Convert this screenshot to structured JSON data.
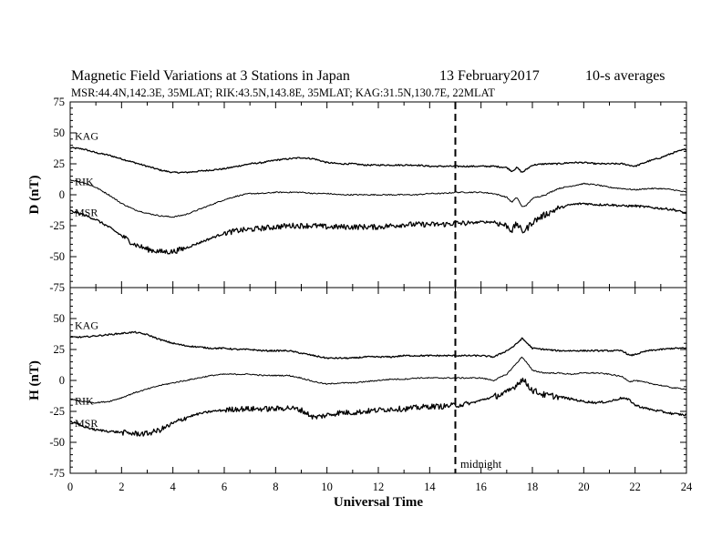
{
  "header": {
    "title": "Magnetic Field Variations at 3 Stations in Japan",
    "date": "13 February2017",
    "averaging": "10-s averages",
    "stations_line": "MSR:44.4N,142.3E, 35MLAT;  RIK:43.5N,143.8E, 35MLAT;  KAG:31.5N,130.7E, 22MLAT"
  },
  "chart_data": {
    "type": "line",
    "x_label": "Universal Time",
    "x_range": [
      0,
      24
    ],
    "x_ticks": [
      "0",
      "2",
      "4",
      "6",
      "8",
      "10",
      "12",
      "14",
      "16",
      "18",
      "20",
      "22",
      "24"
    ],
    "marker": {
      "x": 15,
      "label": "midnight"
    },
    "panels": [
      {
        "id": "D",
        "ylabel": "D (nT)",
        "ylim": [
          -75,
          75
        ],
        "y_ticks": [
          "75",
          "50",
          "25",
          "0",
          "-25",
          "-50",
          "-75"
        ],
        "series": [
          {
            "name": "KAG",
            "x": [
              0,
              0.5,
              1,
              1.5,
              2,
              2.5,
              3,
              3.5,
              4,
              4.5,
              5,
              5.5,
              6,
              6.5,
              7,
              7.5,
              8,
              8.5,
              9,
              9.5,
              10,
              10.5,
              11,
              11.5,
              12,
              12.5,
              13,
              13.5,
              14,
              14.5,
              15,
              15.5,
              16,
              16.5,
              17,
              17.2,
              17.4,
              17.6,
              17.8,
              18,
              18.5,
              19,
              19.5,
              20,
              20.5,
              21,
              21.5,
              22,
              22.5,
              23,
              23.5,
              24
            ],
            "y": [
              38,
              37,
              34,
              32,
              29,
              26,
              23,
              20,
              18,
              18,
              19,
              20,
              21,
              23,
              25,
              26,
              28,
              29,
              30,
              29,
              26,
              25,
              25,
              24,
              24,
              24,
              24,
              24,
              23,
              23,
              23,
              23,
              23,
              23,
              22,
              19,
              22,
              18,
              21,
              24,
              25,
              25,
              26,
              26,
              25,
              25,
              25,
              23,
              27,
              30,
              34,
              37
            ]
          },
          {
            "name": "RIK",
            "x": [
              0,
              0.5,
              1,
              1.5,
              2,
              2.5,
              3,
              3.5,
              4,
              4.5,
              5,
              5.5,
              6,
              6.5,
              7,
              7.5,
              8,
              8.5,
              9,
              9.5,
              10,
              10.5,
              11,
              11.5,
              12,
              12.5,
              13,
              13.5,
              14,
              14.5,
              15,
              15.5,
              16,
              16.5,
              17,
              17.2,
              17.4,
              17.6,
              17.8,
              18,
              18.5,
              19,
              19.5,
              20,
              20.5,
              21,
              21.5,
              22,
              22.5,
              23,
              23.5,
              24
            ],
            "y": [
              12,
              10,
              6,
              0,
              -7,
              -12,
              -15,
              -17,
              -18,
              -16,
              -12,
              -8,
              -4,
              -1,
              1,
              1,
              2,
              2,
              2,
              1,
              1,
              0,
              0,
              0,
              0,
              0,
              0,
              0,
              1,
              1,
              2,
              2,
              2,
              1,
              -2,
              -6,
              -2,
              -10,
              -8,
              -3,
              0,
              5,
              7,
              9,
              8,
              6,
              5,
              4,
              5,
              5,
              4,
              2
            ]
          },
          {
            "name": "MSR",
            "x": [
              0,
              0.5,
              1,
              1.5,
              2,
              2.5,
              3,
              3.5,
              4,
              4.5,
              5,
              5.5,
              6,
              6.5,
              7,
              7.5,
              8,
              8.5,
              9,
              9.5,
              10,
              10.5,
              11,
              11.5,
              12,
              12.5,
              13,
              13.5,
              14,
              14.5,
              15,
              15.5,
              16,
              16.5,
              17,
              17.2,
              17.4,
              17.6,
              17.8,
              18,
              18.5,
              19,
              19.5,
              20,
              20.5,
              21,
              21.5,
              22,
              22.5,
              23,
              23.5,
              24
            ],
            "y": [
              -13,
              -16,
              -20,
              -26,
              -33,
              -40,
              -44,
              -46,
              -46,
              -43,
              -39,
              -35,
              -31,
              -29,
              -28,
              -27,
              -26,
              -25,
              -25,
              -25,
              -26,
              -26,
              -26,
              -26,
              -26,
              -25,
              -24,
              -24,
              -24,
              -24,
              -23,
              -23,
              -22,
              -22,
              -25,
              -29,
              -23,
              -30,
              -27,
              -22,
              -16,
              -11,
              -8,
              -7,
              -8,
              -8,
              -9,
              -9,
              -10,
              -11,
              -12,
              -15
            ]
          }
        ]
      },
      {
        "id": "H",
        "ylabel": "H (nT)",
        "ylim": [
          -75,
          75
        ],
        "y_ticks": [
          "75",
          "50",
          "25",
          "0",
          "-25",
          "-50",
          "-75"
        ],
        "series": [
          {
            "name": "KAG",
            "x": [
              0,
              0.5,
              1,
              1.5,
              2,
              2.5,
              3,
              3.5,
              4,
              4.5,
              5,
              5.5,
              6,
              6.5,
              7,
              7.5,
              8,
              8.5,
              9,
              9.5,
              10,
              10.5,
              11,
              11.5,
              12,
              12.5,
              13,
              13.5,
              14,
              14.5,
              15,
              15.5,
              16,
              16.5,
              17,
              17.3,
              17.6,
              17.8,
              18,
              18.5,
              19,
              19.5,
              20,
              20.5,
              21,
              21.5,
              21.8,
              22,
              22.5,
              23,
              23.5,
              24
            ],
            "y": [
              35,
              35,
              36,
              37,
              38,
              39,
              37,
              33,
              30,
              28,
              27,
              26,
              26,
              25,
              25,
              24,
              24,
              24,
              22,
              20,
              18,
              18,
              18,
              19,
              19,
              19,
              20,
              20,
              20,
              20,
              20,
              20,
              20,
              19,
              24,
              28,
              34,
              30,
              26,
              25,
              24,
              24,
              24,
              24,
              24,
              24,
              20,
              21,
              24,
              25,
              26,
              26
            ]
          },
          {
            "name": "RIK",
            "x": [
              0,
              0.5,
              1,
              1.5,
              2,
              2.5,
              3,
              3.5,
              4,
              4.5,
              5,
              5.5,
              6,
              6.5,
              7,
              7.5,
              8,
              8.5,
              9,
              9.5,
              10,
              10.5,
              11,
              11.5,
              12,
              12.5,
              13,
              13.5,
              14,
              14.5,
              15,
              15.5,
              16,
              16.5,
              17,
              17.3,
              17.6,
              17.8,
              18,
              18.5,
              19,
              19.5,
              20,
              20.5,
              21,
              21.5,
              21.8,
              22,
              22.5,
              23,
              23.5,
              24
            ],
            "y": [
              -15,
              -17,
              -18,
              -17,
              -14,
              -10,
              -7,
              -4,
              -2,
              0,
              2,
              4,
              5,
              5,
              5,
              4,
              4,
              4,
              2,
              -1,
              -3,
              -2,
              -2,
              -1,
              0,
              1,
              1,
              2,
              2,
              2,
              2,
              2,
              2,
              0,
              5,
              12,
              19,
              14,
              8,
              6,
              6,
              5,
              6,
              6,
              5,
              3,
              -1,
              0,
              -2,
              -4,
              -6,
              -7
            ]
          },
          {
            "name": "MSR",
            "x": [
              0,
              0.5,
              1,
              1.5,
              2,
              2.5,
              3,
              3.5,
              4,
              4.5,
              5,
              5.5,
              6,
              6.5,
              7,
              7.5,
              8,
              8.5,
              9,
              9.5,
              10,
              10.5,
              11,
              11.5,
              12,
              12.5,
              13,
              13.5,
              14,
              14.5,
              15,
              15.5,
              16,
              16.5,
              17,
              17.3,
              17.6,
              17.8,
              18,
              18.5,
              19,
              19.5,
              20,
              20.5,
              21,
              21.5,
              21.8,
              22,
              22.5,
              23,
              23.5,
              24
            ],
            "y": [
              -33,
              -37,
              -40,
              -41,
              -42,
              -43,
              -43,
              -40,
              -35,
              -30,
              -27,
              -25,
              -24,
              -23,
              -23,
              -23,
              -23,
              -22,
              -24,
              -30,
              -28,
              -26,
              -26,
              -25,
              -24,
              -23,
              -23,
              -22,
              -21,
              -21,
              -20,
              -19,
              -16,
              -13,
              -10,
              -5,
              1,
              -3,
              -8,
              -12,
              -13,
              -15,
              -17,
              -18,
              -17,
              -14,
              -16,
              -20,
              -23,
              -25,
              -27,
              -28
            ]
          }
        ]
      }
    ]
  }
}
